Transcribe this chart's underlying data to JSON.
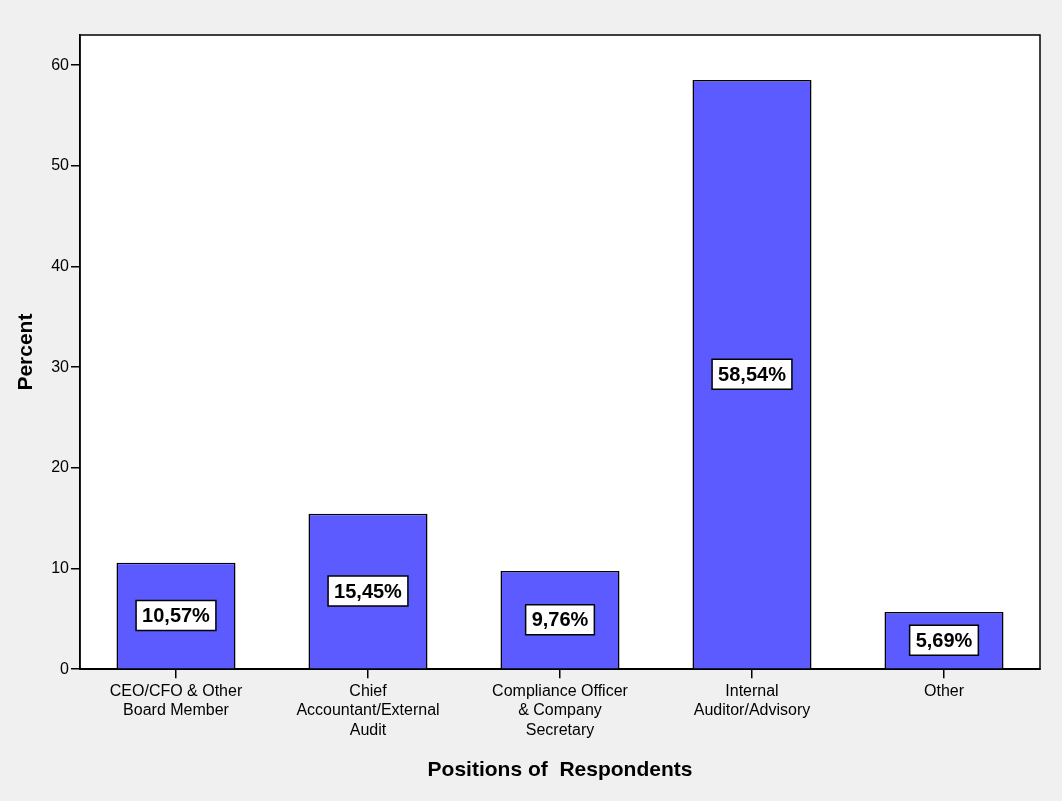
{
  "chart_data": {
    "type": "bar",
    "categories": [
      "CEO/CFO & Other Board Member",
      "Chief Accountant/External Audit",
      "Compliance Officer & Company Secretary",
      "Internal Auditor/Advisory",
      "Other"
    ],
    "values": [
      10.57,
      15.45,
      9.76,
      58.54,
      5.69
    ],
    "value_labels": [
      "10,57%",
      "15,45%",
      "9,76%",
      "58,54%",
      "5,69%"
    ],
    "color": "#5b5bff",
    "xlabel": "Positions of  Respondents",
    "ylabel": "Percent",
    "ylim": [
      0,
      63
    ],
    "yticks": [
      0,
      10,
      20,
      30,
      40,
      50,
      60
    ],
    "grid": false
  }
}
